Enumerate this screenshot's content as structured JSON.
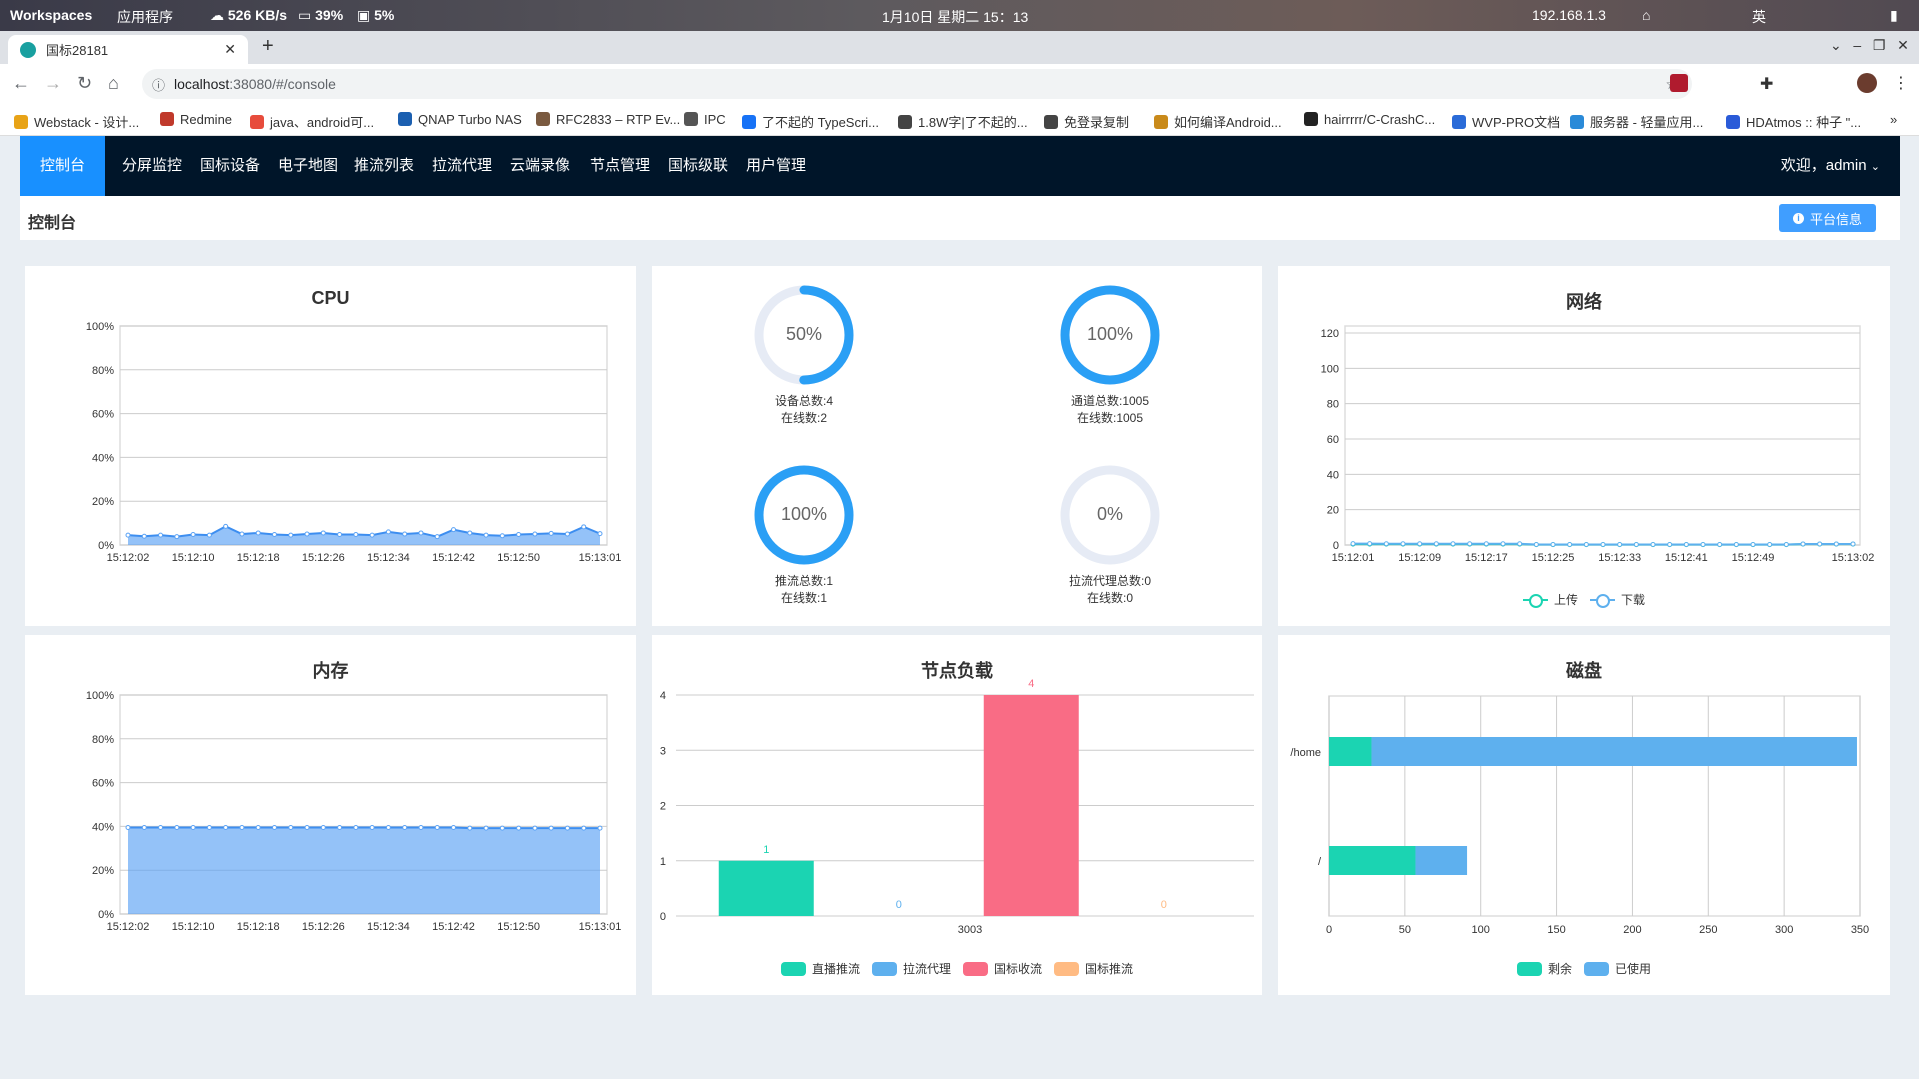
{
  "os_bar": {
    "workspaces": "Workspaces",
    "apps": "应用程序",
    "net_speed": "526 KB/s",
    "cpu": "39%",
    "mem": "5%",
    "datetime": "1月10日 星期二 15：13",
    "ip": "192.168.1.3",
    "ime": "英"
  },
  "browser": {
    "tab_title": "国标28181",
    "url_host": "localhost",
    "url_path": ":38080/#/console",
    "bookmarks": [
      "Webstack - 设计...",
      "Redmine",
      "java、android可...",
      "QNAP Turbo NAS",
      "RFC2833 – RTP Ev...",
      "IPC",
      "了不起的 TypeScri...",
      "1.8W字|了不起的...",
      "免登录复制",
      "如何编译Android...",
      "hairrrrr/C-CrashC...",
      "WVP-PRO文档",
      "服务器 - 轻量应用...",
      "HDAtmos :: 种子 \"..."
    ]
  },
  "nav": {
    "items": [
      "控制台",
      "分屏监控",
      "国标设备",
      "电子地图",
      "推流列表",
      "拉流代理",
      "云端录像",
      "节点管理",
      "国标级联",
      "用户管理"
    ],
    "active": 0,
    "user": "欢迎，admin"
  },
  "page": {
    "title": "控制台",
    "platform_button": "平台信息"
  },
  "colors": {
    "nav_bg": "#001529",
    "nav_active": "#1890ff",
    "gauge": "#2a9ff5",
    "gauge_track": "#e6ebf5",
    "area": "#5aa2f5",
    "green": "#1bd4b2",
    "blue": "#5eb0ee",
    "red": "#f96c85",
    "orange": "#ffbb83"
  },
  "gauges": [
    {
      "percent": 50,
      "label": "50%",
      "line1": "设备总数:4",
      "line2": "在线数:2"
    },
    {
      "percent": 100,
      "label": "100%",
      "line1": "通道总数:1005",
      "line2": "在线数:1005"
    },
    {
      "percent": 100,
      "label": "100%",
      "line1": "推流总数:1",
      "line2": "在线数:1"
    },
    {
      "percent": 0,
      "label": "0%",
      "line1": "拉流代理总数:0",
      "line2": "在线数:0"
    }
  ],
  "chart_data": [
    {
      "id": "cpu",
      "type": "area",
      "title": "CPU",
      "ylim": [
        0,
        100
      ],
      "yticks": [
        "0%",
        "20%",
        "40%",
        "60%",
        "80%",
        "100%"
      ],
      "xticks": [
        "15:12:02",
        "15:12:10",
        "15:12:18",
        "15:12:26",
        "15:12:34",
        "15:12:42",
        "15:12:50",
        "15:13:01"
      ],
      "values": [
        4.5,
        4,
        4.5,
        3.8,
        4.8,
        4.5,
        8.5,
        5,
        5.5,
        4.8,
        4.5,
        5,
        5.5,
        4.8,
        4.8,
        4.5,
        6,
        5,
        5.5,
        3.8,
        7,
        5.5,
        4.5,
        4.2,
        4.8,
        5,
        5.3,
        5,
        8.3,
        5.2
      ]
    },
    {
      "id": "net",
      "type": "line",
      "title": "网络",
      "ylim": [
        0,
        120
      ],
      "yticks": [
        "0",
        "20",
        "40",
        "60",
        "80",
        "100",
        "120"
      ],
      "xticks": [
        "15:12:01",
        "15:12:09",
        "15:12:17",
        "15:12:25",
        "15:12:33",
        "15:12:41",
        "15:12:49",
        "15:13:02"
      ],
      "series": [
        {
          "name": "上传",
          "color": "#1bd4b2",
          "values": [
            0.5,
            0.5,
            0.5,
            0.5,
            0.5,
            0.5,
            0.5,
            0.5,
            0.5,
            0.5,
            0.5,
            0.2,
            0.2,
            0.2,
            0.2,
            0.2,
            0.2,
            0.2,
            0.2,
            0.2,
            0.2,
            0.2,
            0.2,
            0.2,
            0.2,
            0.2,
            0.2,
            0.5,
            0.5,
            0.5,
            0.5
          ]
        },
        {
          "name": "下载",
          "color": "#5eb0ee",
          "values": [
            0.8,
            0.8,
            0.7,
            0.7,
            0.7,
            0.7,
            0.7,
            0.7,
            0.7,
            0.7,
            0.7,
            0.3,
            0.3,
            0.3,
            0.3,
            0.3,
            0.3,
            0.3,
            0.3,
            0.3,
            0.3,
            0.3,
            0.3,
            0.3,
            0.3,
            0.3,
            0.3,
            0.6,
            0.6,
            0.6,
            0.6
          ]
        }
      ]
    },
    {
      "id": "mem",
      "type": "area",
      "title": "内存",
      "ylim": [
        0,
        100
      ],
      "yticks": [
        "0%",
        "20%",
        "40%",
        "60%",
        "80%",
        "100%"
      ],
      "xticks": [
        "15:12:02",
        "15:12:10",
        "15:12:18",
        "15:12:26",
        "15:12:34",
        "15:12:42",
        "15:12:50",
        "15:13:01"
      ],
      "values": [
        39.5,
        39.5,
        39.5,
        39.5,
        39.5,
        39.5,
        39.5,
        39.5,
        39.5,
        39.5,
        39.5,
        39.5,
        39.5,
        39.5,
        39.5,
        39.5,
        39.5,
        39.5,
        39.5,
        39.5,
        39.5,
        39.2,
        39.2,
        39.2,
        39.2,
        39.2,
        39.2,
        39.2,
        39.2,
        39.2
      ]
    },
    {
      "id": "node",
      "type": "bar",
      "title": "节点负载",
      "ylim": [
        0,
        4
      ],
      "yticks": [
        "0",
        "1",
        "2",
        "3",
        "4"
      ],
      "categories": [
        "3003"
      ],
      "series": [
        {
          "name": "直播推流",
          "color": "#1bd4b2",
          "values": [
            1
          ]
        },
        {
          "name": "拉流代理",
          "color": "#5eb0ee",
          "values": [
            0
          ]
        },
        {
          "name": "国标收流",
          "color": "#f96c85",
          "values": [
            4
          ]
        },
        {
          "name": "国标推流",
          "color": "#ffbb83",
          "values": [
            0
          ]
        }
      ]
    },
    {
      "id": "disk",
      "type": "stacked-horizontal-bar",
      "title": "磁盘",
      "xlim": [
        0,
        350
      ],
      "xticks": [
        "0",
        "50",
        "100",
        "150",
        "200",
        "250",
        "300",
        "350"
      ],
      "categories": [
        "/home",
        "/"
      ],
      "series": [
        {
          "name": "剩余",
          "color": "#1bd4b2",
          "values": [
            28,
            57
          ]
        },
        {
          "name": "已使用",
          "color": "#5eb0ee",
          "values": [
            320,
            34
          ]
        }
      ]
    }
  ]
}
